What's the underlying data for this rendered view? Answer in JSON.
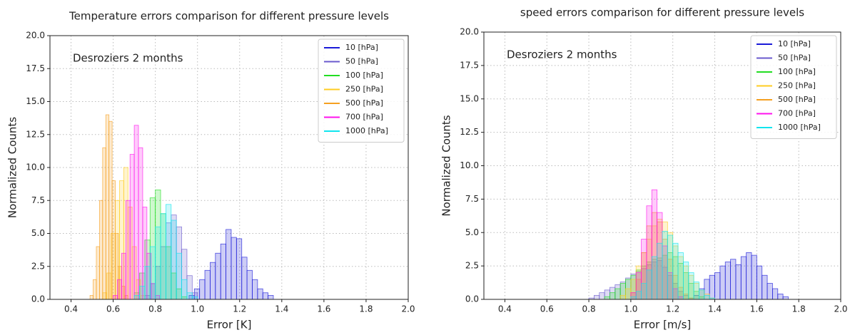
{
  "chart_data": [
    {
      "type": "histogram",
      "title": "Temperature errors comparison for different pressure levels",
      "xlabel": "Error [K]",
      "ylabel": "Normalized Counts",
      "annotation": "Desroziers 2 months",
      "xlim": [
        0.3,
        2.0
      ],
      "ylim": [
        0,
        20
      ],
      "xticks": [
        0.4,
        0.6,
        0.8,
        {
          "value": 1,
          "label": "1.0"
        },
        1.2,
        1.4,
        1.6,
        1.8,
        {
          "value": 2,
          "label": "2.0"
        }
      ],
      "yticks": [
        {
          "value": 0,
          "label": "0.0"
        },
        2.5,
        {
          "value": 5,
          "label": "5.0"
        },
        7.5,
        {
          "value": 10,
          "label": "10.0"
        },
        12.5,
        {
          "value": 15,
          "label": "15.0"
        },
        17.5,
        {
          "value": 20,
          "label": "20.0"
        }
      ],
      "grid": true,
      "legend": "upper right",
      "series": [
        {
          "name": "10 [hPa]",
          "color": "#1a1ad8",
          "bins": [
            0.96,
            0.985,
            1.01,
            1.035,
            1.06,
            1.085,
            1.11,
            1.135,
            1.16,
            1.185,
            1.21,
            1.235,
            1.26,
            1.285,
            1.31,
            1.335,
            1.36
          ],
          "values": [
            0.3,
            0.8,
            1.5,
            2.2,
            2.8,
            3.5,
            4.2,
            5.3,
            4.7,
            4.6,
            3.2,
            2.2,
            1.5,
            0.8,
            0.5,
            0.3
          ]
        },
        {
          "name": "50 [hPa]",
          "color": "#6a5acd",
          "bins": [
            0.75,
            0.775,
            0.8,
            0.825,
            0.85,
            0.875,
            0.9,
            0.925,
            0.95,
            0.975,
            1.0
          ],
          "values": [
            0.3,
            1.2,
            2.5,
            4.0,
            5.8,
            6.4,
            5.5,
            3.8,
            1.8,
            0.5
          ]
        },
        {
          "name": "100 [hPa]",
          "color": "#22dd22",
          "bins": [
            0.7,
            0.725,
            0.75,
            0.775,
            0.8,
            0.825,
            0.85,
            0.875,
            0.9,
            0.925,
            0.95
          ],
          "values": [
            0.5,
            2.0,
            4.5,
            7.7,
            8.3,
            6.5,
            4.0,
            2.0,
            0.8,
            0.2
          ]
        },
        {
          "name": "250 [hPa]",
          "color": "#ffcc22",
          "bins": [
            0.55,
            0.57,
            0.59,
            0.61,
            0.63,
            0.65,
            0.67,
            0.69,
            0.71,
            0.73,
            0.75
          ],
          "values": [
            0.5,
            2.0,
            5.0,
            7.5,
            9.0,
            10.0,
            7.0,
            4.0,
            1.5,
            0.3
          ]
        },
        {
          "name": "500 [hPa]",
          "color": "#f5a020",
          "bins": [
            0.49,
            0.505,
            0.52,
            0.535,
            0.55,
            0.565,
            0.58,
            0.595,
            0.61,
            0.625,
            0.64,
            0.655,
            0.67
          ],
          "values": [
            0.3,
            1.5,
            4.0,
            7.5,
            11.5,
            14.0,
            13.5,
            9.0,
            5.0,
            2.5,
            1.0,
            0.3
          ]
        },
        {
          "name": "700 [hPa]",
          "color": "#ff11ee",
          "bins": [
            0.6,
            0.62,
            0.64,
            0.66,
            0.68,
            0.7,
            0.72,
            0.74,
            0.76,
            0.78,
            0.8,
            0.82
          ],
          "values": [
            0.3,
            1.5,
            3.5,
            7.5,
            11.0,
            13.2,
            11.5,
            7.0,
            3.5,
            1.2,
            0.3
          ]
        },
        {
          "name": "1000 [hPa]",
          "color": "#11e5ee",
          "bins": [
            0.7,
            0.725,
            0.75,
            0.775,
            0.8,
            0.825,
            0.85,
            0.875,
            0.9,
            0.925,
            0.95,
            0.975,
            1.0
          ],
          "values": [
            0.3,
            1.0,
            2.5,
            4.0,
            5.5,
            6.5,
            7.2,
            6.0,
            3.5,
            1.5,
            0.5,
            0.2
          ]
        }
      ]
    },
    {
      "type": "histogram",
      "title": "speed errors comparison for different pressure levels",
      "xlabel": "Error [m/s]",
      "ylabel": "Normalized Counts",
      "annotation": "Desroziers 2 months",
      "xlim": [
        0.3,
        2.0
      ],
      "ylim": [
        0,
        20
      ],
      "xticks": [
        0.4,
        0.6,
        0.8,
        {
          "value": 1,
          "label": "1.0"
        },
        1.2,
        1.4,
        1.6,
        1.8,
        {
          "value": 2,
          "label": "2.0"
        }
      ],
      "yticks": [
        {
          "value": 0,
          "label": "0.0"
        },
        2.5,
        {
          "value": 5,
          "label": "5.0"
        },
        7.5,
        {
          "value": 10,
          "label": "10.0"
        },
        12.5,
        {
          "value": 15,
          "label": "15.0"
        },
        17.5,
        {
          "value": 20,
          "label": "20.0"
        }
      ],
      "grid": true,
      "legend": "upper right",
      "series": [
        {
          "name": "10 [hPa]",
          "color": "#1a1ad8",
          "bins": [
            1.3,
            1.325,
            1.35,
            1.375,
            1.4,
            1.425,
            1.45,
            1.475,
            1.5,
            1.525,
            1.55,
            1.575,
            1.6,
            1.625,
            1.65,
            1.675,
            1.7,
            1.725,
            1.75
          ],
          "values": [
            0.3,
            0.8,
            1.5,
            1.8,
            2.0,
            2.5,
            2.8,
            3.0,
            2.6,
            3.2,
            3.5,
            3.3,
            2.5,
            1.8,
            1.2,
            0.8,
            0.4,
            0.2
          ]
        },
        {
          "name": "50 [hPa]",
          "color": "#6a5acd",
          "bins": [
            0.8,
            0.825,
            0.85,
            0.875,
            0.9,
            0.925,
            0.95,
            0.975,
            1.0,
            1.025,
            1.05,
            1.075,
            1.1,
            1.125,
            1.15,
            1.175,
            1.2,
            1.225,
            1.25,
            1.275,
            1.3
          ],
          "values": [
            0.1,
            0.3,
            0.5,
            0.7,
            0.9,
            1.1,
            1.3,
            1.6,
            1.9,
            2.1,
            2.3,
            2.6,
            2.8,
            2.9,
            2.4,
            1.8,
            1.2,
            0.6,
            0.3,
            0.1
          ]
        },
        {
          "name": "100 [hPa]",
          "color": "#22dd22",
          "bins": [
            0.875,
            0.9,
            0.925,
            0.95,
            0.975,
            1.0,
            1.025,
            1.05,
            1.075,
            1.1,
            1.125,
            1.15,
            1.175,
            1.2,
            1.225,
            1.25,
            1.275,
            1.3,
            1.325,
            1.35
          ],
          "values": [
            0.2,
            0.5,
            0.8,
            1.2,
            1.5,
            1.8,
            2.2,
            2.5,
            2.8,
            3.0,
            3.1,
            3.3,
            3.5,
            3.2,
            2.7,
            2.0,
            1.2,
            0.6,
            0.2
          ]
        },
        {
          "name": "250 [hPa]",
          "color": "#ffcc22",
          "bins": [
            0.95,
            0.975,
            1.0,
            1.025,
            1.05,
            1.075,
            1.1,
            1.125,
            1.15,
            1.175,
            1.2,
            1.225,
            1.25,
            1.275,
            1.3,
            1.325,
            1.35,
            1.375,
            1.4
          ],
          "values": [
            0.3,
            0.8,
            1.5,
            2.5,
            3.5,
            4.5,
            5.5,
            6.0,
            5.8,
            5.0,
            4.0,
            3.2,
            2.5,
            1.8,
            1.2,
            0.7,
            0.4,
            0.1
          ]
        },
        {
          "name": "500 [hPa]",
          "color": "#f5a020",
          "bins": [
            1.0,
            1.025,
            1.05,
            1.075,
            1.1,
            1.125,
            1.15,
            1.175,
            1.2,
            1.225,
            1.25,
            1.275,
            1.3
          ],
          "values": [
            0.5,
            1.5,
            3.5,
            5.5,
            6.5,
            5.8,
            4.5,
            3.0,
            1.8,
            0.9,
            0.4,
            0.1
          ]
        },
        {
          "name": "700 [hPa]",
          "color": "#ff11ee",
          "bins": [
            1.0,
            1.025,
            1.05,
            1.075,
            1.1,
            1.125,
            1.15,
            1.175,
            1.2,
            1.225,
            1.25
          ],
          "values": [
            0.5,
            2.0,
            4.5,
            7.0,
            8.2,
            6.5,
            4.0,
            2.0,
            0.8,
            0.2
          ]
        },
        {
          "name": "1000 [hPa]",
          "color": "#11e5ee",
          "bins": [
            1.0,
            1.025,
            1.05,
            1.075,
            1.1,
            1.125,
            1.15,
            1.175,
            1.2,
            1.225,
            1.25,
            1.275,
            1.3,
            1.325,
            1.35,
            1.375,
            1.4
          ],
          "values": [
            0.2,
            0.6,
            1.2,
            2.2,
            3.2,
            4.2,
            5.1,
            4.8,
            4.2,
            3.5,
            2.8,
            2.0,
            1.3,
            0.7,
            0.3,
            0.1
          ]
        }
      ]
    }
  ]
}
